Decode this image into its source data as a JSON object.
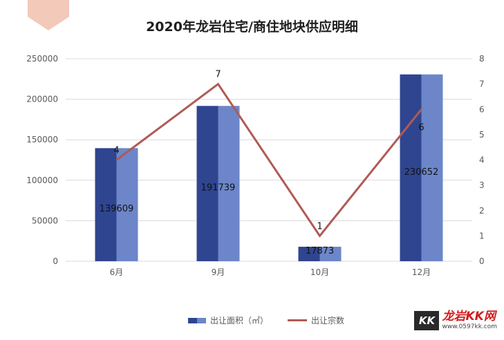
{
  "logo": {
    "name": "龙岩KK网",
    "url": "www.0597kk.com",
    "badge": "KK"
  },
  "chart_data": {
    "type": "bar",
    "title": "2020年龙岩住宅/商住地块供应明细",
    "categories": [
      "6月",
      "9月",
      "10月",
      "12月"
    ],
    "series": [
      {
        "name": "出让面积（㎡）",
        "type": "bar",
        "axis": "left",
        "values": [
          139609,
          191739,
          17873,
          230652
        ],
        "colors": [
          "#2f4590",
          "#6c86c9"
        ]
      },
      {
        "name": "出让宗数",
        "type": "line",
        "axis": "right",
        "values": [
          4,
          7,
          1,
          6
        ],
        "color": "#b05a55"
      }
    ],
    "y_left": {
      "range": [
        0,
        250000
      ],
      "ticks": [
        "0",
        "50000",
        "100000",
        "150000",
        "200000",
        "250000"
      ]
    },
    "y_right": {
      "range": [
        0,
        8
      ],
      "ticks": [
        "0",
        "1",
        "2",
        "3",
        "4",
        "5",
        "6",
        "7",
        "8"
      ]
    },
    "grid": true,
    "legend_position": "bottom"
  }
}
